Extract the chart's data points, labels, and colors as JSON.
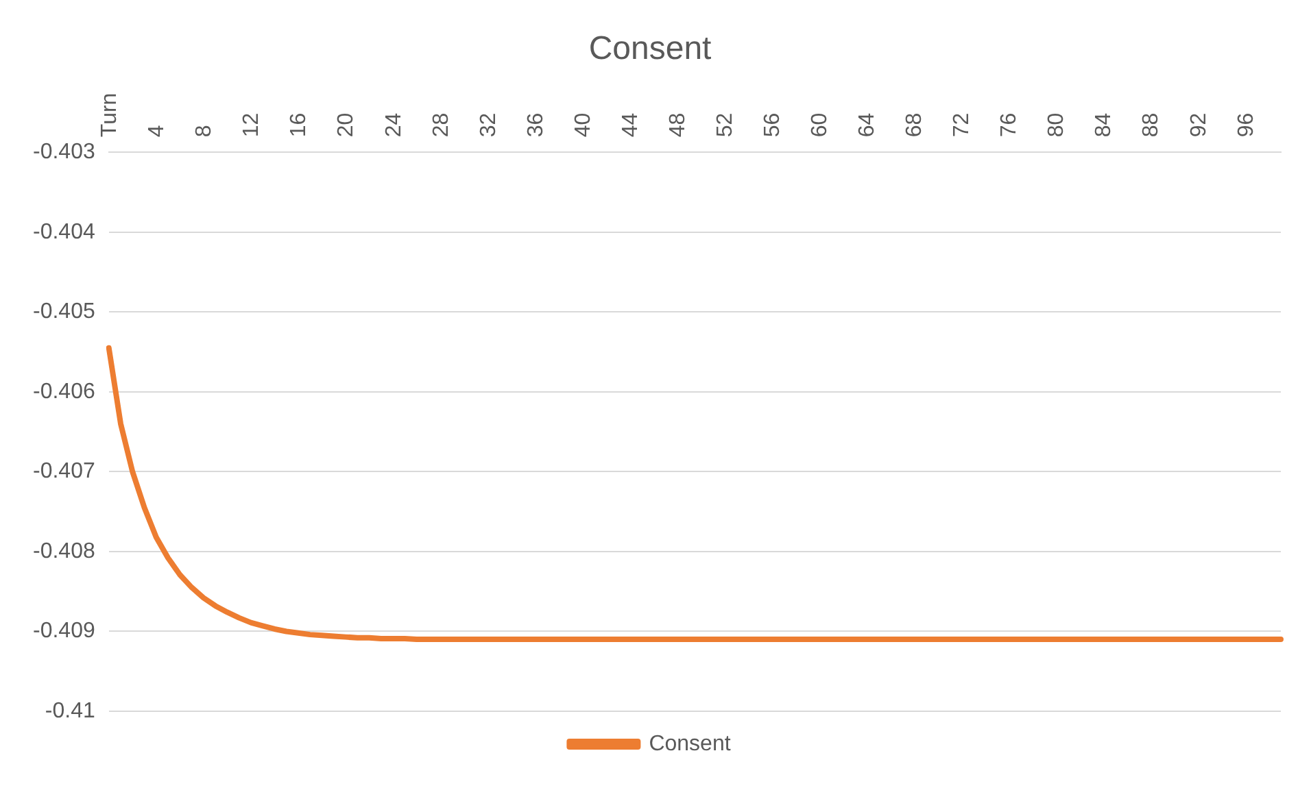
{
  "chart_data": {
    "type": "line",
    "title": "Consent",
    "categories": [
      "Turn",
      null,
      null,
      null,
      "4",
      null,
      null,
      null,
      "8",
      null,
      null,
      null,
      "12",
      null,
      null,
      null,
      "16",
      null,
      null,
      null,
      "20",
      null,
      null,
      null,
      "24",
      null,
      null,
      null,
      "28",
      null,
      null,
      null,
      "32",
      null,
      null,
      null,
      "36",
      null,
      null,
      null,
      "40",
      null,
      null,
      null,
      "44",
      null,
      null,
      null,
      "48",
      null,
      null,
      null,
      "52",
      null,
      null,
      null,
      "56",
      null,
      null,
      null,
      "60",
      null,
      null,
      null,
      "64",
      null,
      null,
      null,
      "68",
      null,
      null,
      null,
      "72",
      null,
      null,
      null,
      "76",
      null,
      null,
      null,
      "80",
      null,
      null,
      null,
      "84",
      null,
      null,
      null,
      "88",
      null,
      null,
      null,
      "92",
      null,
      null,
      null,
      "96",
      null,
      null,
      null
    ],
    "series": [
      {
        "name": "Consent",
        "color": "#ed7d31",
        "values": [
          -0.40545,
          -0.4064,
          -0.407,
          -0.40745,
          -0.40782,
          -0.40808,
          -0.40829,
          -0.40845,
          -0.40858,
          -0.40868,
          -0.40876,
          -0.40883,
          -0.40889,
          -0.40893,
          -0.40897,
          -0.409,
          -0.40902,
          -0.40904,
          -0.40905,
          -0.40906,
          -0.40907,
          -0.40908,
          -0.40908,
          -0.40909,
          -0.40909,
          -0.40909,
          -0.4091,
          -0.4091,
          -0.4091,
          -0.4091,
          -0.4091,
          -0.4091,
          -0.4091,
          -0.4091,
          -0.4091,
          -0.4091,
          -0.4091,
          -0.4091,
          -0.4091,
          -0.4091,
          -0.4091,
          -0.4091,
          -0.4091,
          -0.4091,
          -0.4091,
          -0.4091,
          -0.4091,
          -0.4091,
          -0.4091,
          -0.4091,
          -0.4091,
          -0.4091,
          -0.4091,
          -0.4091,
          -0.4091,
          -0.4091,
          -0.4091,
          -0.4091,
          -0.4091,
          -0.4091,
          -0.4091,
          -0.4091,
          -0.4091,
          -0.4091,
          -0.4091,
          -0.4091,
          -0.4091,
          -0.4091,
          -0.4091,
          -0.4091,
          -0.4091,
          -0.4091,
          -0.4091,
          -0.4091,
          -0.4091,
          -0.4091,
          -0.4091,
          -0.4091,
          -0.4091,
          -0.4091,
          -0.4091,
          -0.4091,
          -0.4091,
          -0.4091,
          -0.4091,
          -0.4091,
          -0.4091,
          -0.4091,
          -0.4091,
          -0.4091,
          -0.4091,
          -0.4091,
          -0.4091,
          -0.4091,
          -0.4091,
          -0.4091,
          -0.4091,
          -0.4091,
          -0.4091,
          -0.4091
        ]
      }
    ],
    "ylim": [
      -0.41,
      -0.403
    ],
    "yticks": [
      -0.403,
      -0.404,
      -0.405,
      -0.406,
      -0.407,
      -0.408,
      -0.409,
      -0.41
    ],
    "grid": "y",
    "legend": "bottom",
    "marker": "none",
    "line_style": "solid"
  }
}
